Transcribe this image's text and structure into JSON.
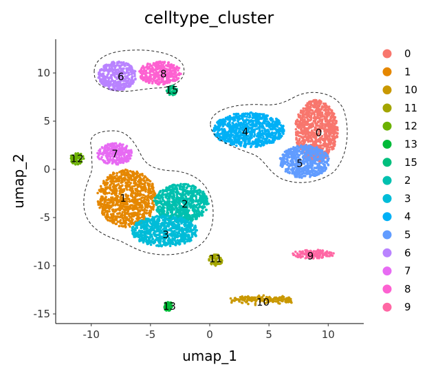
{
  "chart_data": {
    "type": "scatter",
    "title": "celltype_cluster",
    "xlabel": "umap_1",
    "ylabel": "umap_2",
    "xlim": [
      -13,
      13
    ],
    "ylim": [
      -16,
      13.5
    ],
    "x_ticks": [
      -10,
      -5,
      0,
      5,
      10
    ],
    "y_ticks": [
      10,
      5,
      0,
      -5,
      -10,
      -15
    ],
    "x_tick_labels": [
      "-10",
      "-5",
      "0",
      "5",
      "10"
    ],
    "y_tick_labels": [
      "10",
      "5",
      "0",
      "-5",
      "-10",
      "-15"
    ],
    "grid": false,
    "legend_position": "right",
    "clusters": [
      {
        "name": "0",
        "color": "#F8766D",
        "label_at": [
          9.2,
          3.8
        ],
        "shape": "ellipse",
        "center": [
          9.0,
          4.0
        ],
        "extent": [
          1.8,
          3.2
        ]
      },
      {
        "name": "1",
        "color": "#E58700",
        "label_at": [
          -7.3,
          -3.0
        ],
        "shape": "ellipse",
        "center": [
          -7.0,
          -3.0
        ],
        "extent": [
          2.5,
          3.0
        ]
      },
      {
        "name": "10",
        "color": "#C99800",
        "label_at": [
          4.5,
          -13.8
        ],
        "shape": "band",
        "center": [
          4.3,
          -13.5
        ],
        "extent": [
          2.6,
          0.4
        ]
      },
      {
        "name": "11",
        "color": "#A3A500",
        "label_at": [
          0.5,
          -9.3
        ],
        "shape": "ellipse",
        "center": [
          0.5,
          -9.4
        ],
        "extent": [
          0.6,
          0.6
        ]
      },
      {
        "name": "12",
        "color": "#6BB100",
        "label_at": [
          -11.2,
          1.1
        ],
        "shape": "ellipse",
        "center": [
          -11.2,
          1.1
        ],
        "extent": [
          0.6,
          0.6
        ]
      },
      {
        "name": "13",
        "color": "#00BA38",
        "label_at": [
          -3.4,
          -14.2
        ],
        "shape": "ellipse",
        "center": [
          -3.5,
          -14.2
        ],
        "extent": [
          0.35,
          0.5
        ]
      },
      {
        "name": "15",
        "color": "#00BF7D",
        "label_at": [
          -3.2,
          8.2
        ],
        "shape": "ellipse",
        "center": [
          -3.2,
          8.2
        ],
        "extent": [
          0.45,
          0.5
        ]
      },
      {
        "name": "2",
        "color": "#00C0AF",
        "label_at": [
          -2.1,
          -3.6
        ],
        "shape": "ellipse",
        "center": [
          -2.4,
          -3.5
        ],
        "extent": [
          2.3,
          2.0
        ]
      },
      {
        "name": "3",
        "color": "#00BCD8",
        "label_at": [
          -3.7,
          -6.8
        ],
        "shape": "ellipse",
        "center": [
          -3.8,
          -6.4
        ],
        "extent": [
          2.8,
          1.6
        ]
      },
      {
        "name": "4",
        "color": "#00B0F6",
        "label_at": [
          3.0,
          3.9
        ],
        "shape": "ellipse",
        "center": [
          3.3,
          4.1
        ],
        "extent": [
          3.0,
          1.8
        ]
      },
      {
        "name": "5",
        "color": "#619CFF",
        "label_at": [
          7.6,
          0.6
        ],
        "shape": "ellipse",
        "center": [
          8.0,
          0.8
        ],
        "extent": [
          2.1,
          1.7
        ]
      },
      {
        "name": "6",
        "color": "#B983FF",
        "label_at": [
          -7.5,
          9.6
        ],
        "shape": "ellipse",
        "center": [
          -7.8,
          9.7
        ],
        "extent": [
          1.6,
          1.5
        ]
      },
      {
        "name": "7",
        "color": "#E76BF3",
        "label_at": [
          -8.0,
          1.6
        ],
        "shape": "ellipse",
        "center": [
          -8.0,
          1.6
        ],
        "extent": [
          1.5,
          1.1
        ]
      },
      {
        "name": "8",
        "color": "#FD61D1",
        "label_at": [
          -3.9,
          9.9
        ],
        "shape": "ellipse",
        "center": [
          -4.2,
          10.0
        ],
        "extent": [
          1.8,
          1.2
        ]
      },
      {
        "name": "9",
        "color": "#FF67A4",
        "label_at": [
          8.5,
          -9.0
        ],
        "shape": "ellipse",
        "center": [
          8.7,
          -8.8
        ],
        "extent": [
          1.8,
          0.45
        ]
      }
    ],
    "annotations": [
      {
        "type": "dashed-outline",
        "encloses": [
          "6",
          "8"
        ]
      },
      {
        "type": "dashed-outline",
        "encloses": [
          "4",
          "0",
          "5"
        ]
      },
      {
        "type": "dashed-outline",
        "encloses": [
          "7",
          "1",
          "2",
          "3"
        ]
      }
    ]
  }
}
